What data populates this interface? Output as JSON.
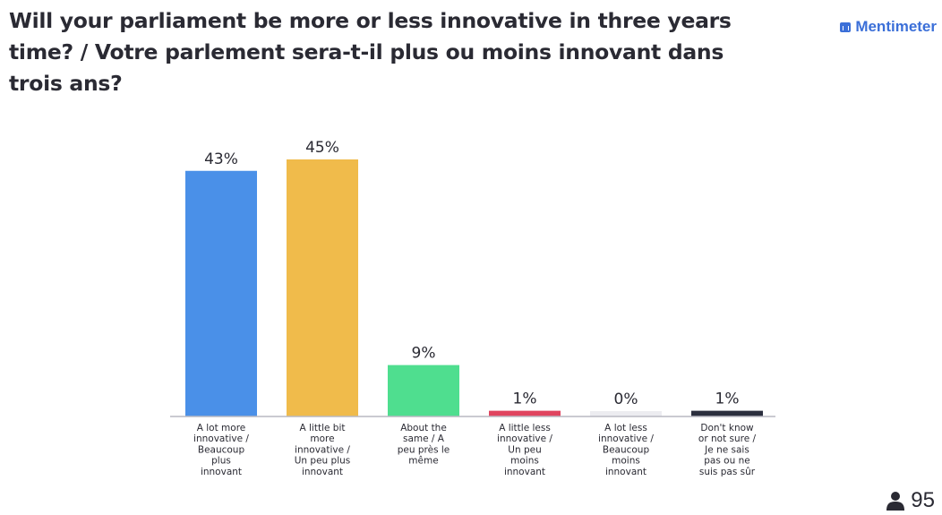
{
  "title": "Will your parliament be more or less innovative in three years time? / Votre parlement sera-t-il plus ou moins innovant dans trois ans?",
  "brand": {
    "name": "Mentimeter",
    "icon": "mentimeter-logo-icon"
  },
  "participants": {
    "count": "95",
    "icon": "person-icon"
  },
  "chart_data": {
    "type": "bar",
    "categories": [
      "A lot more innovative / Beaucoup plus innovant",
      "A little bit more innovative / Un peu plus innovant",
      "About the same / A peu près le même",
      "A little less innovative / Un peu moins innovant",
      "A lot less innovative / Beaucoup moins innovant",
      "Don't know or not sure / Je ne sais pas ou ne suis pas sûr"
    ],
    "category_lines": [
      [
        "A lot more",
        "innovative /",
        "Beaucoup",
        "plus",
        "innovant"
      ],
      [
        "A little bit",
        "more",
        "innovative /",
        "Un peu plus",
        "innovant"
      ],
      [
        "About the",
        "same / A",
        "peu près le",
        "même"
      ],
      [
        "A little less",
        "innovative /",
        "Un peu",
        "moins",
        "innovant"
      ],
      [
        "A lot less",
        "innovative /",
        "Beaucoup",
        "moins",
        "innovant"
      ],
      [
        "Don't know",
        "or not sure /",
        "Je ne sais",
        "pas ou ne",
        "suis pas sûr"
      ]
    ],
    "values": [
      43,
      45,
      9,
      1,
      0,
      1
    ],
    "value_labels": [
      "43%",
      "45%",
      "9%",
      "1%",
      "0%",
      "1%"
    ],
    "colors": [
      "#4a90e8",
      "#f0bb4b",
      "#4fde8f",
      "#e0445f",
      "#ececf0",
      "#2b2f3e"
    ],
    "ylim": [
      0,
      45
    ],
    "grid": false,
    "legend": "none"
  }
}
